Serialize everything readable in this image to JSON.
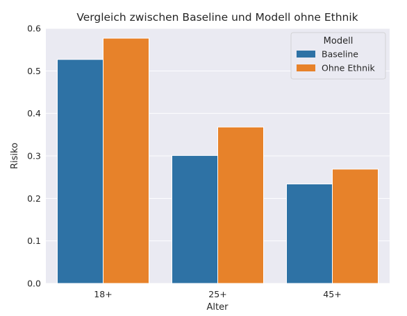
{
  "chart_data": {
    "type": "bar",
    "title": "Vergleich zwischen Baseline und Modell ohne Ethnik",
    "xlabel": "Alter",
    "ylabel": "Risiko",
    "categories": [
      "18+",
      "25+",
      "45+"
    ],
    "ylim": [
      0,
      0.6
    ],
    "yticks": [
      "0.0",
      "0.1",
      "0.2",
      "0.3",
      "0.4",
      "0.5",
      "0.6"
    ],
    "grid": true,
    "legend": {
      "title": "Modell",
      "position": "top-right"
    },
    "series": [
      {
        "name": "Baseline",
        "color": "#2e72a5",
        "values": [
          0.527,
          0.301,
          0.234
        ]
      },
      {
        "name": "Ohne Ethnik",
        "color": "#e7822a",
        "values": [
          0.577,
          0.368,
          0.269
        ]
      }
    ]
  }
}
